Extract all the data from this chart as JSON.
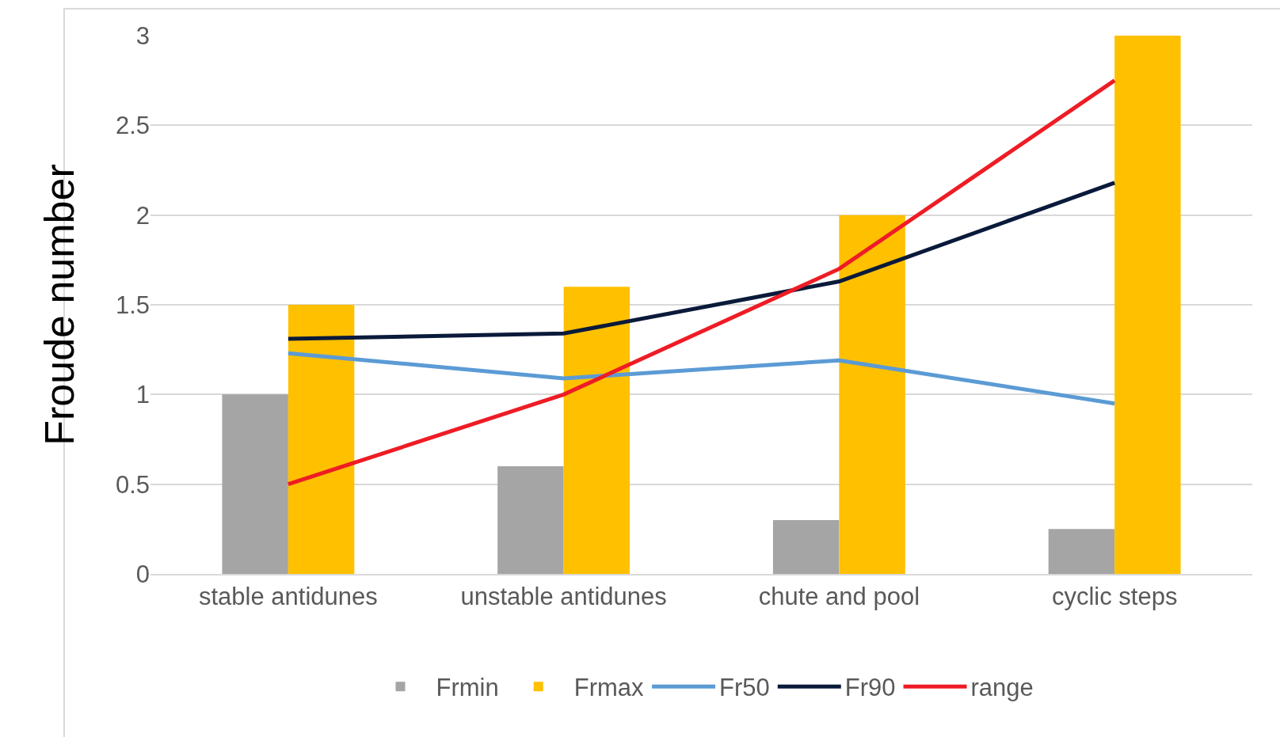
{
  "chart_data": {
    "type": "bar",
    "ylabel": "Froude number",
    "categories": [
      "stable antidunes",
      "unstable antidunes",
      "chute and pool",
      "cyclic steps"
    ],
    "series": [
      {
        "name": "Frmin",
        "color": "#a5a5a5",
        "values": [
          1.0,
          0.6,
          0.3,
          0.25
        ]
      },
      {
        "name": "Frmax",
        "color": "#ffc000",
        "values": [
          1.5,
          1.6,
          2.0,
          3.0
        ]
      },
      {
        "name": "Fr50",
        "type": "line",
        "color": "#5b9bd5",
        "values": [
          1.23,
          1.09,
          1.19,
          0.95
        ]
      },
      {
        "name": "Fr90",
        "type": "line",
        "color": "#0a1a3a",
        "values": [
          1.31,
          1.34,
          1.63,
          2.18
        ]
      },
      {
        "name": "range",
        "type": "line",
        "color": "#ee1c25",
        "values": [
          0.5,
          1.0,
          1.7,
          2.75
        ]
      }
    ],
    "ylim": [
      0,
      3
    ],
    "yticks": [
      0,
      0.5,
      1,
      1.5,
      2,
      2.5,
      3
    ],
    "grid": "y",
    "legend": "bottom",
    "marker": "none",
    "line_style": "solid"
  }
}
